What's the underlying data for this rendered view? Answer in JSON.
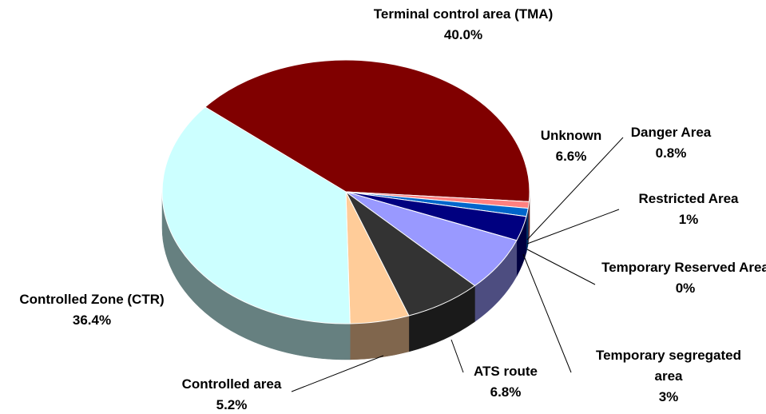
{
  "chart_data": {
    "type": "pie",
    "categories": [
      "Terminal control area (TMA)",
      "Danger Area",
      "Restricted Area",
      "Temporary Reserved Area",
      "Temporary segregated area",
      "Unknown",
      "ATS route",
      "Controlled area",
      "Controlled Zone (CTR)"
    ],
    "values": [
      40.0,
      0.8,
      1,
      0,
      3,
      6.6,
      6.8,
      5.2,
      36.4
    ],
    "value_labels": [
      "40.0%",
      "0.8%",
      "1%",
      "0%",
      "3%",
      "6.6%",
      "6.8%",
      "5.2%",
      "36.4%"
    ],
    "colors": [
      "#800000",
      "#ff8080",
      "#0066cc",
      "#3333aa",
      "#000080",
      "#9999ff",
      "#333333",
      "#ffcc99",
      "#ccffff"
    ]
  }
}
